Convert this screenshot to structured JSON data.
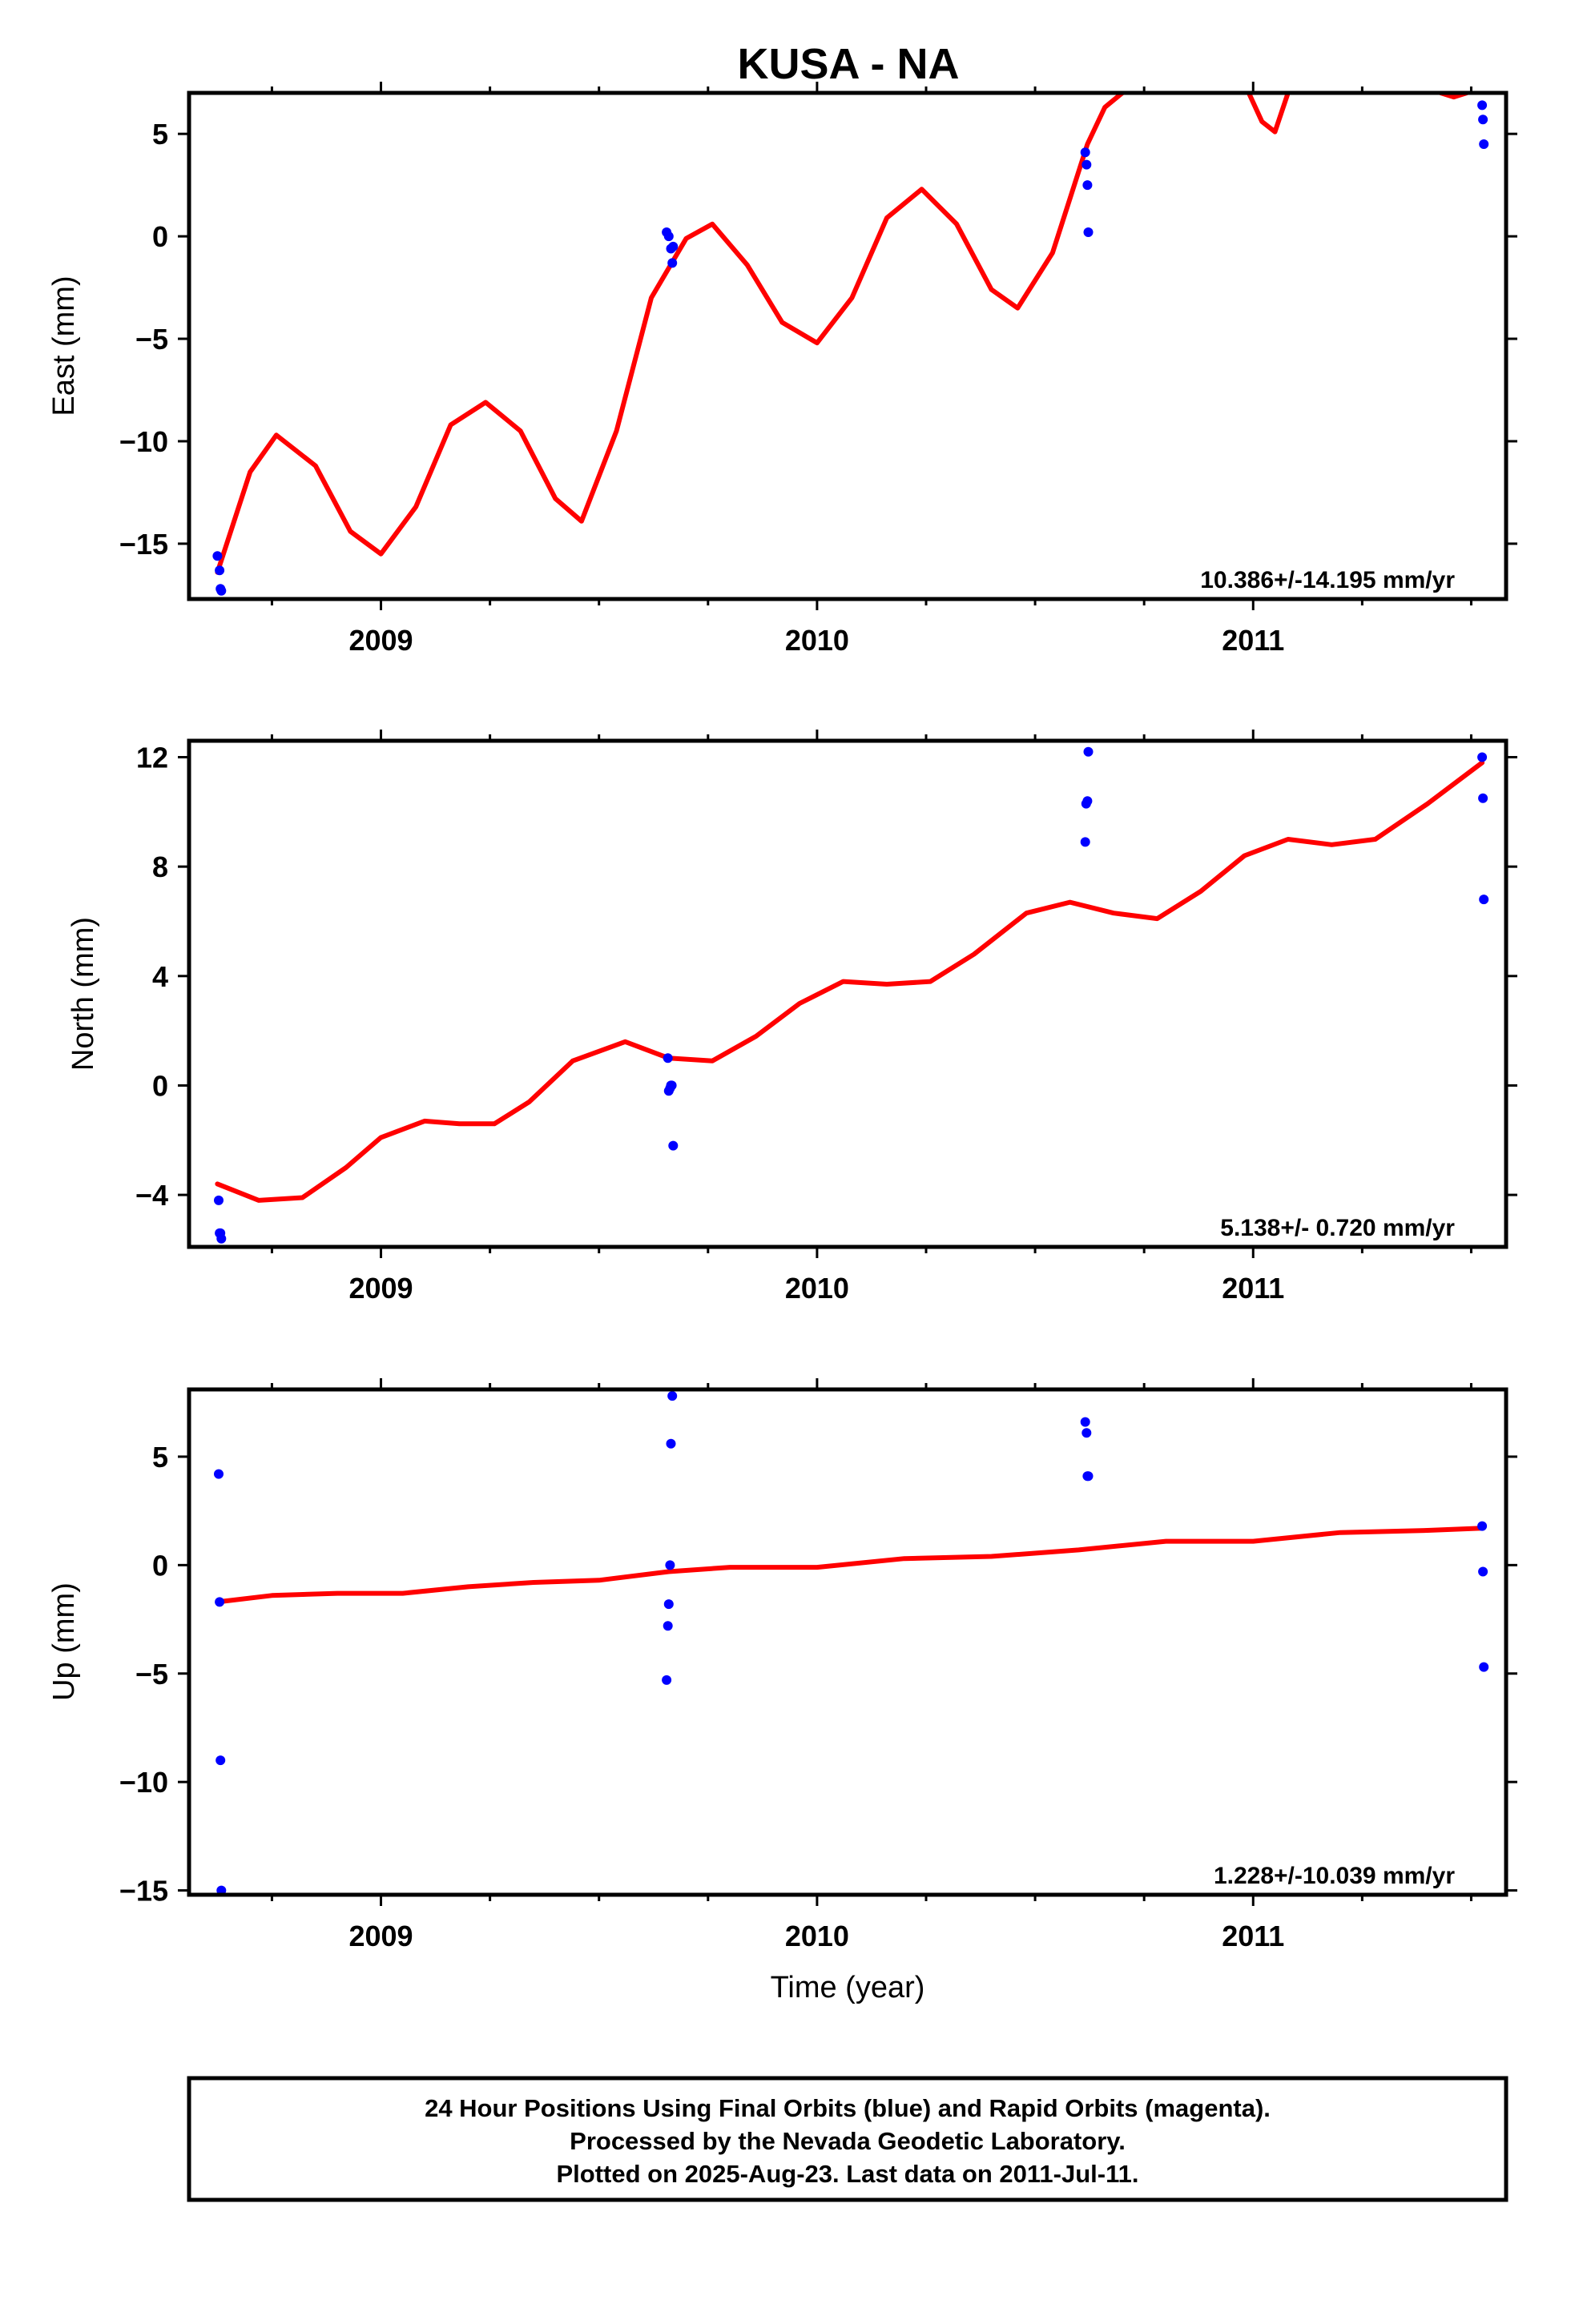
{
  "title": "KUSA - NA",
  "footer": {
    "lines": [
      "24 Hour Positions Using Final Orbits (blue) and Rapid Orbits (magenta).",
      "Processed by the Nevada Geodetic Laboratory.",
      "Plotted on 2025-Aug-23. Last data on 2011-Jul-11."
    ]
  },
  "colors": {
    "final_orbits": "#0000ff",
    "fit_line": "#ff0000",
    "frame": "#000000"
  },
  "chart_data": [
    {
      "type": "scatter",
      "ylabel": "East (mm)",
      "xlabel": "",
      "xlim": [
        2008.56,
        2011.58
      ],
      "ylim": [
        -17.7,
        7.0
      ],
      "xticks": [
        2009,
        2010,
        2011
      ],
      "xtick_labels": [
        "2009",
        "2010",
        "2011"
      ],
      "yticks": [
        -15,
        -10,
        -5,
        0,
        5
      ],
      "ytick_labels": [
        "−15",
        "−10",
        "−5",
        "0",
        "5"
      ],
      "rate_label": "10.386+/-14.195 mm/yr",
      "series": [
        {
          "kind": "points",
          "x": [
            2008.625,
            2008.63,
            2008.632,
            2008.634,
            2009.655,
            2009.66,
            2009.665,
            2009.668,
            2009.67,
            2010.615,
            2010.618,
            2010.62,
            2010.622,
            2011.525,
            2011.527,
            2011.529
          ],
          "y": [
            -15.6,
            -16.3,
            -17.2,
            -17.3,
            0.2,
            0.0,
            -0.6,
            -1.3,
            -0.5,
            4.1,
            3.5,
            2.5,
            0.2,
            6.4,
            5.7,
            4.5
          ]
        },
        {
          "kind": "line",
          "x": [
            2008.625,
            2008.7,
            2008.76,
            2008.85,
            2008.93,
            2009.0,
            2009.08,
            2009.16,
            2009.24,
            2009.32,
            2009.4,
            2009.46,
            2009.54,
            2009.62,
            2009.7,
            2009.76,
            2009.84,
            2009.92,
            2010.0,
            2010.08,
            2010.16,
            2010.24,
            2010.32,
            2010.4,
            2010.46,
            2010.54,
            2010.62,
            2010.66,
            2010.7
          ],
          "y": [
            -16.4,
            -11.5,
            -9.7,
            -11.2,
            -14.4,
            -15.5,
            -13.2,
            -9.2,
            -8.1,
            -9.5,
            -12.8,
            -13.9,
            -9.5,
            -3.0,
            -0.1,
            0.6,
            -1.4,
            -4.2,
            -5.2,
            -3.0,
            0.9,
            2.3,
            0.6,
            -2.6,
            -3.5,
            -0.8,
            4.5,
            6.3,
            7.0
          ]
        },
        {
          "kind": "line",
          "x": [
            2010.99,
            2011.02,
            2011.05,
            2011.08
          ],
          "y": [
            7.0,
            5.6,
            5.1,
            7.0
          ]
        },
        {
          "kind": "line",
          "x": [
            2011.43,
            2011.46,
            2011.49
          ],
          "y": [
            7.0,
            6.8,
            7.0
          ]
        }
      ]
    },
    {
      "type": "scatter",
      "ylabel": "North (mm)",
      "xlabel": "",
      "xlim": [
        2008.56,
        2011.58
      ],
      "ylim": [
        -5.9,
        12.6
      ],
      "xticks": [
        2009,
        2010,
        2011
      ],
      "xtick_labels": [
        "2009",
        "2010",
        "2011"
      ],
      "yticks": [
        -4,
        0,
        4,
        8,
        12
      ],
      "ytick_labels": [
        "−4",
        "0",
        "4",
        "8",
        "12"
      ],
      "rate_label": "5.138+/- 0.720 mm/yr",
      "series": [
        {
          "kind": "points",
          "x": [
            2008.628,
            2008.63,
            2008.632,
            2008.634,
            2009.658,
            2009.66,
            2009.663,
            2009.665,
            2009.667,
            2009.67,
            2010.615,
            2010.617,
            2010.62,
            2010.622,
            2011.525,
            2011.527,
            2011.529
          ],
          "y": [
            -4.2,
            -5.4,
            -5.4,
            -5.6,
            1.0,
            -0.2,
            -0.1,
            0.0,
            0.0,
            -2.2,
            8.9,
            10.3,
            10.4,
            12.2,
            12.0,
            10.5,
            6.8
          ],
          "note": "ordering approximates visible marks"
        },
        {
          "kind": "line",
          "x": [
            2008.625,
            2008.72,
            2008.82,
            2008.92,
            2009.0,
            2009.1,
            2009.18,
            2009.26,
            2009.34,
            2009.44,
            2009.56,
            2009.66,
            2009.76,
            2009.86,
            2009.96,
            2010.06,
            2010.16,
            2010.26,
            2010.36,
            2010.48,
            2010.58,
            2010.68,
            2010.78,
            2010.88,
            2010.98,
            2011.08,
            2011.18,
            2011.28,
            2011.4,
            2011.525
          ],
          "y": [
            -3.6,
            -4.2,
            -4.1,
            -3.0,
            -1.9,
            -1.3,
            -1.4,
            -1.4,
            -0.6,
            0.9,
            1.6,
            1.0,
            0.9,
            1.8,
            3.0,
            3.8,
            3.7,
            3.8,
            4.8,
            6.3,
            6.7,
            6.3,
            6.1,
            7.1,
            8.4,
            9.0,
            8.8,
            9.0,
            10.3,
            11.8
          ]
        }
      ]
    },
    {
      "type": "scatter",
      "ylabel": "Up (mm)",
      "xlabel": "Time (year)",
      "xlim": [
        2008.56,
        2011.58
      ],
      "ylim": [
        -15.2,
        8.1
      ],
      "xticks": [
        2009,
        2010,
        2011
      ],
      "xtick_labels": [
        "2009",
        "2010",
        "2011"
      ],
      "yticks": [
        -15,
        -10,
        -5,
        0,
        5
      ],
      "ytick_labels": [
        "−15",
        "−10",
        "−5",
        "0",
        "5"
      ],
      "rate_label": "1.228+/-10.039 mm/yr",
      "series": [
        {
          "kind": "points",
          "x": [
            2008.628,
            2008.63,
            2008.632,
            2008.634,
            2009.655,
            2009.658,
            2009.66,
            2009.663,
            2009.665,
            2009.668,
            2010.615,
            2010.618,
            2010.62,
            2010.622,
            2011.525,
            2011.527,
            2011.529
          ],
          "y": [
            4.2,
            -1.7,
            -9.0,
            -15.0,
            -5.3,
            -2.8,
            -1.8,
            0.0,
            5.6,
            7.8,
            6.6,
            6.1,
            4.1,
            4.1,
            1.8,
            -0.3,
            -4.7
          ]
        },
        {
          "kind": "line",
          "x": [
            2008.625,
            2008.75,
            2008.9,
            2009.05,
            2009.2,
            2009.35,
            2009.5,
            2009.66,
            2009.8,
            2010.0,
            2010.2,
            2010.4,
            2010.6,
            2010.8,
            2011.0,
            2011.2,
            2011.4,
            2011.525
          ],
          "y": [
            -1.7,
            -1.4,
            -1.3,
            -1.3,
            -1.0,
            -0.8,
            -0.7,
            -0.3,
            -0.1,
            -0.1,
            0.3,
            0.4,
            0.7,
            1.1,
            1.1,
            1.5,
            1.6,
            1.7
          ]
        }
      ]
    }
  ]
}
